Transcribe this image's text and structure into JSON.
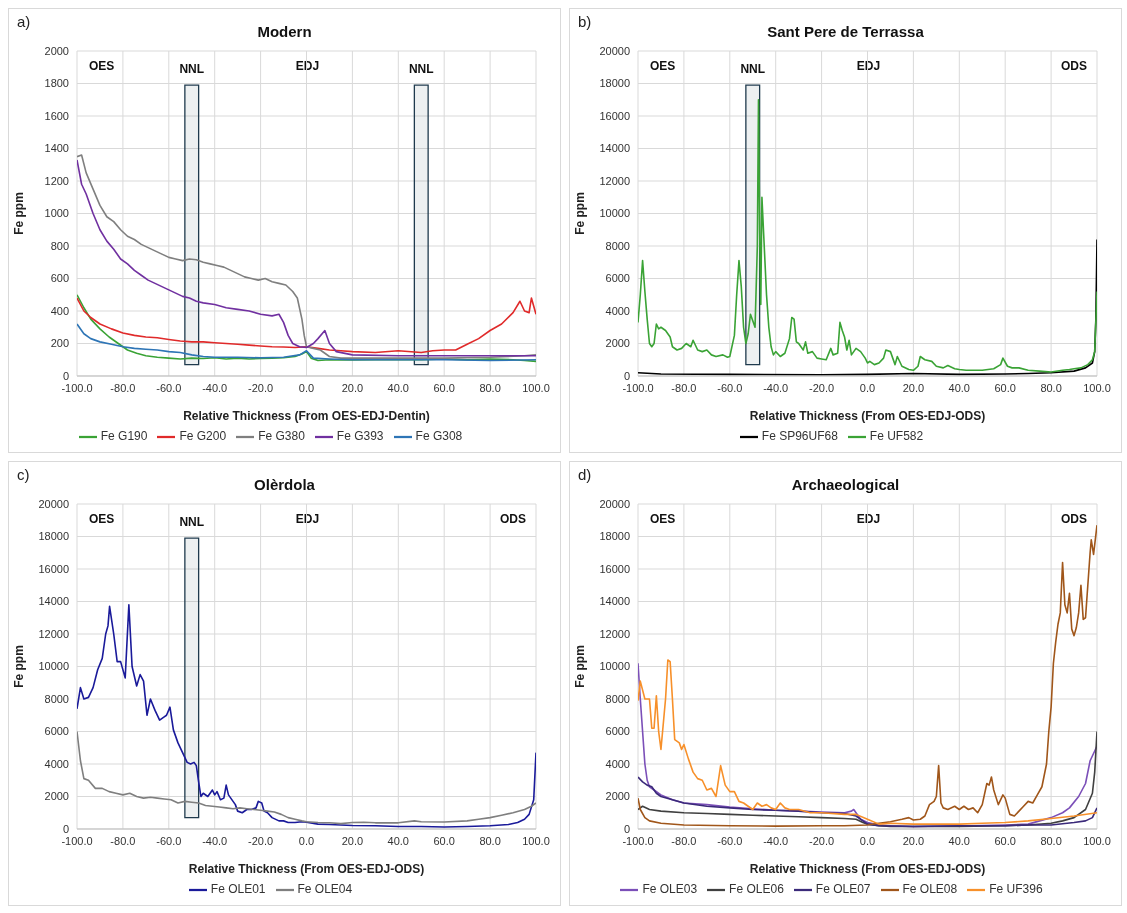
{
  "chart_data": [
    {
      "type": "line",
      "title": "Modern",
      "xlabel": "Relative Thickness (From OES-EDJ-Dentin)",
      "ylabel": "Fe ppm",
      "annotations": [
        "a)",
        "OES",
        "EDJ"
      ],
      "bands": [
        {
          "axis": "x",
          "from": -53,
          "to": -47,
          "label": "NNL",
          "color": "#1f3a4d"
        },
        {
          "axis": "x",
          "from": 47,
          "to": 53,
          "label": "NNL",
          "color": "#1f3a4d"
        }
      ],
      "xlim": [
        -100,
        100
      ],
      "xticks": [
        {
          "value": -100,
          "label": "-100.0"
        },
        {
          "value": -80,
          "label": "-80.0"
        },
        {
          "value": -60,
          "label": "-60.0"
        },
        {
          "value": -40,
          "label": "-40.0"
        },
        {
          "value": -20,
          "label": "-20.0"
        },
        {
          "value": 0,
          "label": "0.0"
        },
        {
          "value": 20,
          "label": "20.0"
        },
        {
          "value": 40,
          "label": "40.0"
        },
        {
          "value": 60,
          "label": "60.0"
        },
        {
          "value": 80,
          "label": "80.0"
        },
        {
          "value": 100,
          "label": "100.0"
        }
      ],
      "ylim": [
        0,
        2000
      ],
      "yticks": [
        0,
        200,
        400,
        600,
        800,
        1000,
        1200,
        1400,
        1600,
        1800,
        2000
      ],
      "grid": true,
      "legend": "bottom",
      "series": [
        {
          "name": "Fe G190",
          "color": "#3aa335",
          "x": [
            -100,
            -97,
            -94,
            -90,
            -86,
            -82,
            -78,
            -74,
            -70,
            -65,
            -60,
            -55,
            -50,
            -45,
            -40,
            -35,
            -30,
            -25,
            -20,
            -15,
            -10,
            -5,
            -2,
            0,
            2,
            5,
            10,
            20,
            30,
            40,
            50,
            60,
            70,
            80,
            90,
            95,
            100
          ],
          "values": [
            500,
            420,
            350,
            290,
            240,
            200,
            160,
            140,
            125,
            115,
            110,
            105,
            110,
            108,
            112,
            105,
            110,
            105,
            108,
            110,
            112,
            120,
            135,
            150,
            110,
            95,
            100,
            98,
            100,
            102,
            100,
            105,
            100,
            105,
            100,
            95,
            90
          ]
        },
        {
          "name": "Fe G200",
          "color": "#e02a2a",
          "x": [
            -100,
            -97,
            -94,
            -90,
            -85,
            -80,
            -75,
            -70,
            -65,
            -60,
            -55,
            -50,
            -45,
            -40,
            -35,
            -30,
            -25,
            -20,
            -15,
            -10,
            -5,
            0,
            5,
            10,
            15,
            20,
            30,
            40,
            50,
            55,
            60,
            65,
            70,
            75,
            80,
            85,
            90,
            93,
            95,
            97,
            98,
            100
          ],
          "values": [
            480,
            400,
            360,
            320,
            290,
            265,
            250,
            240,
            235,
            225,
            215,
            210,
            210,
            205,
            200,
            195,
            190,
            185,
            180,
            178,
            175,
            180,
            170,
            160,
            155,
            150,
            145,
            155,
            145,
            155,
            160,
            160,
            195,
            230,
            280,
            320,
            390,
            460,
            400,
            390,
            480,
            380
          ]
        },
        {
          "name": "Fe G380",
          "color": "#7f7f7f",
          "x": [
            -100,
            -98,
            -96,
            -93,
            -90,
            -87,
            -84,
            -81,
            -78,
            -75,
            -72,
            -69,
            -66,
            -63,
            -60,
            -57,
            -54,
            -51,
            -48,
            -45,
            -42,
            -39,
            -36,
            -33,
            -30,
            -27,
            -24,
            -21,
            -18,
            -15,
            -12,
            -9,
            -6,
            -4,
            -2,
            -1,
            0,
            3,
            6,
            10,
            15,
            20,
            40,
            60,
            80,
            95,
            100
          ],
          "values": [
            1350,
            1360,
            1250,
            1150,
            1050,
            980,
            950,
            900,
            860,
            840,
            810,
            790,
            770,
            750,
            730,
            720,
            710,
            720,
            715,
            700,
            690,
            680,
            670,
            650,
            630,
            610,
            600,
            590,
            600,
            580,
            570,
            560,
            520,
            480,
            350,
            250,
            180,
            170,
            160,
            120,
            110,
            110,
            110,
            110,
            115,
            125,
            130
          ]
        },
        {
          "name": "Fe G393",
          "color": "#7030a0",
          "x": [
            -100,
            -98,
            -96,
            -93,
            -90,
            -87,
            -84,
            -81,
            -78,
            -75,
            -72,
            -69,
            -66,
            -63,
            -60,
            -57,
            -54,
            -51,
            -48,
            -45,
            -40,
            -35,
            -30,
            -25,
            -20,
            -15,
            -12,
            -10,
            -8,
            -6,
            -3,
            0,
            3,
            5,
            8,
            10,
            13,
            20,
            40,
            60,
            80,
            100
          ],
          "values": [
            1330,
            1180,
            1120,
            1000,
            900,
            830,
            780,
            720,
            690,
            650,
            620,
            590,
            570,
            550,
            530,
            510,
            490,
            480,
            460,
            450,
            440,
            420,
            410,
            400,
            380,
            370,
            380,
            330,
            250,
            200,
            180,
            175,
            200,
            230,
            280,
            200,
            150,
            130,
            125,
            125,
            125,
            125
          ]
        },
        {
          "name": "Fe G308",
          "color": "#2e75b6",
          "x": [
            -100,
            -97,
            -94,
            -90,
            -85,
            -80,
            -75,
            -70,
            -65,
            -60,
            -55,
            -50,
            -45,
            -40,
            -30,
            -20,
            -10,
            -3,
            0,
            3,
            10,
            20,
            40,
            60,
            80,
            100
          ],
          "values": [
            320,
            260,
            230,
            210,
            195,
            180,
            170,
            165,
            160,
            150,
            145,
            130,
            120,
            115,
            115,
            112,
            115,
            130,
            155,
            110,
            105,
            100,
            100,
            100,
            95,
            100
          ]
        }
      ]
    },
    {
      "type": "line",
      "title": "Sant Pere de Terrassa",
      "xlabel": "Relative Thickness (From OES-EDJ-ODS)",
      "ylabel": "Fe ppm",
      "annotations": [
        "b)",
        "OES",
        "EDJ",
        "ODS"
      ],
      "bands": [
        {
          "axis": "x",
          "from": -53,
          "to": -47,
          "label": "NNL",
          "color": "#1f3a4d"
        }
      ],
      "xlim": [
        -100,
        100
      ],
      "xticks": [
        {
          "value": -100,
          "label": "-100.0"
        },
        {
          "value": -80,
          "label": "-80.0"
        },
        {
          "value": -60,
          "label": "-60.0"
        },
        {
          "value": -40,
          "label": "-40.0"
        },
        {
          "value": -20,
          "label": "-20.0"
        },
        {
          "value": 0,
          "label": "0.0"
        },
        {
          "value": 20,
          "label": "20.0"
        },
        {
          "value": 40,
          "label": "40.0"
        },
        {
          "value": 60,
          "label": "60.0"
        },
        {
          "value": 80,
          "label": "80.0"
        },
        {
          "value": 100,
          "label": "100.0"
        }
      ],
      "ylim": [
        0,
        20000
      ],
      "yticks": [
        0,
        2000,
        4000,
        6000,
        8000,
        10000,
        12000,
        14000,
        16000,
        18000,
        20000
      ],
      "grid": true,
      "legend": "bottom",
      "series": [
        {
          "name": "Fe SP96UF68",
          "color": "#000000",
          "x": [
            -100,
            -90,
            -60,
            -20,
            0,
            20,
            40,
            60,
            70,
            80,
            90,
            95,
            98,
            99,
            99.5,
            100
          ],
          "values": [
            200,
            120,
            100,
            80,
            100,
            150,
            100,
            120,
            150,
            200,
            300,
            500,
            800,
            1500,
            3500,
            8400
          ]
        },
        {
          "name": "Fe UF582",
          "color": "#3aa335",
          "x": [
            -100,
            -99,
            -98,
            -97,
            -96,
            -95,
            -94,
            -93,
            -92,
            -91,
            -90,
            -88,
            -86,
            -85,
            -83,
            -81,
            -79,
            -77,
            -76,
            -74,
            -72,
            -70,
            -68,
            -66,
            -63,
            -61,
            -60,
            -58,
            -57,
            -56,
            -55,
            -54,
            -53,
            -52,
            -51,
            -50,
            -49,
            -48,
            -47.5,
            -47,
            -46.5,
            -46,
            -45,
            -44,
            -43,
            -42,
            -41,
            -40,
            -38,
            -36,
            -34,
            -33,
            -32,
            -31,
            -30,
            -28,
            -27,
            -26,
            -24,
            -22,
            -20,
            -18,
            -16,
            -15,
            -13,
            -12,
            -11,
            -10,
            -9,
            -8,
            -7,
            -5,
            -3,
            -1,
            0,
            1,
            3,
            5,
            7,
            8,
            10,
            11,
            12,
            13,
            15,
            18,
            20,
            22,
            23,
            25,
            28,
            30,
            33,
            35,
            38,
            40,
            43,
            50,
            55,
            58,
            59,
            61,
            63,
            66,
            70,
            75,
            80,
            85,
            88,
            90,
            93,
            96,
            98,
            99,
            100
          ],
          "values": [
            3300,
            5000,
            7100,
            5200,
            3500,
            2000,
            1800,
            2000,
            3200,
            2900,
            3000,
            2800,
            2400,
            1800,
            1600,
            1700,
            2000,
            1800,
            2200,
            1600,
            1500,
            1600,
            1300,
            1200,
            1300,
            1150,
            1200,
            2500,
            5000,
            7100,
            5500,
            3000,
            2000,
            2600,
            3800,
            3400,
            3000,
            8000,
            17000,
            9000,
            4400,
            11000,
            8000,
            5000,
            3000,
            1800,
            1300,
            1500,
            1200,
            1400,
            2300,
            3600,
            3500,
            2100,
            2000,
            1600,
            2100,
            1400,
            1500,
            1100,
            1050,
            1000,
            1700,
            1300,
            1400,
            3300,
            2800,
            2400,
            1600,
            2200,
            1300,
            1700,
            1500,
            1100,
            800,
            900,
            700,
            800,
            1100,
            1600,
            1500,
            1100,
            700,
            1200,
            600,
            400,
            350,
            600,
            1200,
            1000,
            900,
            600,
            500,
            650,
            450,
            400,
            350,
            350,
            450,
            700,
            1100,
            600,
            500,
            500,
            350,
            300,
            250,
            350,
            400,
            450,
            500,
            700,
            1000,
            1500,
            5200
          ]
        }
      ]
    },
    {
      "type": "line",
      "title": "Olèrdola",
      "xlabel": "Relative Thickness (From OES-EDJ-ODS)",
      "ylabel": "Fe ppm",
      "annotations": [
        "c)",
        "OES",
        "EDJ",
        "ODS"
      ],
      "bands": [
        {
          "axis": "x",
          "from": -53,
          "to": -47,
          "label": "NNL",
          "color": "#1f3a4d"
        }
      ],
      "xlim": [
        -100,
        100
      ],
      "xticks": [
        {
          "value": -100,
          "label": "-100.0"
        },
        {
          "value": -80,
          "label": "-80.0"
        },
        {
          "value": -60,
          "label": "-60.0"
        },
        {
          "value": -40,
          "label": "-40.0"
        },
        {
          "value": -20,
          "label": "-20.0"
        },
        {
          "value": 0,
          "label": "0.0"
        },
        {
          "value": 20,
          "label": "20.0"
        },
        {
          "value": 40,
          "label": "40.0"
        },
        {
          "value": 60,
          "label": "60.0"
        },
        {
          "value": 80,
          "label": "80.0"
        },
        {
          "value": 100,
          "label": "100.0"
        }
      ],
      "ylim": [
        0,
        20000
      ],
      "yticks": [
        0,
        2000,
        4000,
        6000,
        8000,
        10000,
        12000,
        14000,
        16000,
        18000,
        20000
      ],
      "grid": true,
      "legend": "bottom",
      "series": [
        {
          "name": "Fe OLE01",
          "color": "#1a1a9a",
          "x": [
            -100,
            -98.5,
            -97,
            -95,
            -93,
            -91,
            -89,
            -87.5,
            -86.5,
            -85.8,
            -84,
            -82.5,
            -81,
            -79,
            -77.4,
            -76,
            -74,
            -72.5,
            -71,
            -69.5,
            -68,
            -66,
            -64,
            -62,
            -61,
            -59.5,
            -58,
            -56,
            -54,
            -52,
            -50.5,
            -49,
            -48,
            -47,
            -46,
            -45,
            -43,
            -41,
            -40,
            -39,
            -37.5,
            -36,
            -35,
            -34,
            -32,
            -31,
            -30,
            -28,
            -26,
            -24,
            -22,
            -21,
            -19.5,
            -18.5,
            -17,
            -15,
            -12,
            -10,
            -8,
            -5,
            -2,
            0,
            5,
            10,
            20,
            30,
            40,
            50,
            60,
            70,
            80,
            88,
            92,
            95,
            97,
            99,
            100
          ],
          "values": [
            7400,
            8700,
            8000,
            8100,
            8700,
            9800,
            10500,
            12000,
            12500,
            13700,
            12000,
            10300,
            10300,
            9300,
            13800,
            10000,
            8800,
            9500,
            9100,
            7000,
            8000,
            7300,
            6700,
            6900,
            7000,
            7500,
            6100,
            5300,
            4700,
            4100,
            4000,
            4100,
            3900,
            2900,
            2000,
            2200,
            2000,
            2400,
            2100,
            2300,
            1800,
            1900,
            2700,
            2100,
            1700,
            1500,
            1100,
            1000,
            1200,
            1200,
            1300,
            1700,
            1600,
            1100,
            1000,
            700,
            500,
            500,
            400,
            400,
            450,
            420,
            300,
            280,
            220,
            200,
            150,
            150,
            120,
            150,
            200,
            280,
            400,
            600,
            900,
            1800,
            4700
          ]
        },
        {
          "name": "Fe OLE04",
          "color": "#7f7f7f",
          "x": [
            -100,
            -98.5,
            -97,
            -95,
            -92,
            -89,
            -86,
            -83,
            -80,
            -77,
            -74,
            -71,
            -68,
            -65,
            -62,
            -59,
            -56,
            -53,
            -50,
            -47,
            -44,
            -41,
            -38,
            -35,
            -32,
            -29,
            -26,
            -23,
            -20,
            -17,
            -14,
            -11,
            -8,
            -5,
            -2,
            0,
            5,
            10,
            15,
            20,
            25,
            30,
            40,
            47,
            50,
            60,
            70,
            75,
            80,
            85,
            90,
            95,
            98,
            100
          ],
          "values": [
            6000,
            4200,
            3100,
            3000,
            2500,
            2500,
            2300,
            2200,
            2100,
            2200,
            2000,
            1900,
            1950,
            1900,
            1850,
            1800,
            1600,
            1700,
            1650,
            1600,
            1450,
            1400,
            1350,
            1300,
            1250,
            1300,
            1250,
            1200,
            1150,
            1100,
            1050,
            900,
            700,
            600,
            500,
            450,
            400,
            380,
            330,
            400,
            420,
            380,
            380,
            500,
            450,
            430,
            500,
            600,
            700,
            850,
            1000,
            1200,
            1400,
            1600
          ]
        }
      ]
    },
    {
      "type": "line",
      "title": "Archaeological",
      "xlabel": "Relative Thickness (From OES-EDJ-ODS)",
      "ylabel": "Fe ppm",
      "annotations": [
        "d)",
        "OES",
        "EDJ",
        "ODS"
      ],
      "xlim": [
        -100,
        100
      ],
      "xticks": [
        {
          "value": -100,
          "label": "-100.0"
        },
        {
          "value": -80,
          "label": "-80.0"
        },
        {
          "value": -60,
          "label": "-60.0"
        },
        {
          "value": -40,
          "label": "-40.0"
        },
        {
          "value": -20,
          "label": "-20.0"
        },
        {
          "value": 0,
          "label": "0.0"
        },
        {
          "value": 20,
          "label": "20.0"
        },
        {
          "value": 40,
          "label": "40.0"
        },
        {
          "value": 60,
          "label": "60.0"
        },
        {
          "value": 80,
          "label": "80.0"
        },
        {
          "value": 100,
          "label": "100.0"
        }
      ],
      "ylim": [
        0,
        20000
      ],
      "yticks": [
        0,
        2000,
        4000,
        6000,
        8000,
        10000,
        12000,
        14000,
        16000,
        18000,
        20000
      ],
      "grid": true,
      "legend": "bottom",
      "series": [
        {
          "name": "Fe OLE03",
          "color": "#7b4fb8",
          "x": [
            -100,
            -99,
            -98,
            -97,
            -96,
            -95,
            -93,
            -90,
            -85,
            -80,
            -70,
            -60,
            -50,
            -40,
            -30,
            -20,
            -10,
            -7,
            -6,
            -5,
            -3,
            0,
            5,
            10,
            20,
            40,
            60,
            70,
            80,
            85,
            88,
            92,
            95,
            97,
            99,
            100
          ],
          "values": [
            10200,
            8000,
            6000,
            4000,
            3000,
            2600,
            2400,
            2100,
            1800,
            1600,
            1500,
            1350,
            1250,
            1150,
            1100,
            1050,
            1000,
            1100,
            1200,
            1000,
            600,
            400,
            250,
            200,
            150,
            180,
            250,
            300,
            700,
            1000,
            1300,
            2000,
            2800,
            4200,
            4800,
            5100
          ]
        },
        {
          "name": "Fe OLE06",
          "color": "#404040",
          "x": [
            -100,
            -98,
            -95,
            -90,
            -80,
            -70,
            -60,
            -50,
            -40,
            -30,
            -20,
            -10,
            -5,
            -2,
            0,
            5,
            10,
            20,
            40,
            60,
            70,
            80,
            85,
            90,
            95,
            98,
            99,
            100
          ],
          "values": [
            1200,
            1400,
            1200,
            1100,
            1000,
            950,
            900,
            850,
            800,
            750,
            700,
            650,
            600,
            400,
            300,
            200,
            150,
            150,
            150,
            200,
            250,
            350,
            500,
            700,
            1200,
            2200,
            3500,
            6000
          ]
        },
        {
          "name": "Fe OLE07",
          "color": "#3b2a7a",
          "x": [
            -100,
            -98,
            -96,
            -94,
            -92,
            -90,
            -85,
            -80,
            -70,
            -60,
            -50,
            -40,
            -30,
            -20,
            -10,
            -5,
            -2,
            0,
            5,
            20,
            40,
            60,
            70,
            80,
            90,
            95,
            98,
            100
          ],
          "values": [
            3200,
            2900,
            2700,
            2600,
            2200,
            2000,
            1800,
            1600,
            1400,
            1300,
            1200,
            1150,
            1100,
            1000,
            950,
            800,
            500,
            300,
            200,
            150,
            200,
            200,
            250,
            250,
            400,
            500,
            700,
            1300
          ]
        },
        {
          "name": "Fe OLE08",
          "color": "#a0561a",
          "x": [
            -100,
            -99,
            -97,
            -95,
            -90,
            -80,
            -60,
            -40,
            -20,
            -10,
            0,
            5,
            10,
            15,
            18,
            20,
            23,
            25,
            27,
            29,
            30,
            31,
            32,
            33,
            35,
            38,
            40,
            42,
            44,
            46,
            48,
            50,
            52,
            53,
            54,
            55,
            57,
            59,
            60,
            62,
            64,
            66,
            68,
            70,
            72,
            74,
            76,
            78,
            79,
            80,
            81,
            82,
            83,
            84,
            85,
            86,
            87,
            88,
            89,
            90,
            91,
            92,
            93,
            94,
            95,
            96,
            97,
            97.5,
            98.5,
            100
          ],
          "values": [
            1900,
            1200,
            700,
            500,
            350,
            250,
            200,
            180,
            200,
            200,
            250,
            350,
            450,
            600,
            700,
            550,
            600,
            800,
            1500,
            1700,
            2000,
            3900,
            1600,
            1300,
            1200,
            1400,
            1200,
            1400,
            1200,
            1300,
            1000,
            1500,
            2800,
            2700,
            3200,
            2400,
            1500,
            2100,
            1900,
            900,
            800,
            1100,
            1400,
            1700,
            1600,
            2100,
            2600,
            4000,
            6000,
            7500,
            10200,
            11500,
            12600,
            13300,
            16400,
            13800,
            13300,
            14500,
            12300,
            11900,
            12400,
            13300,
            15000,
            12900,
            13000,
            15000,
            17000,
            17800,
            16900,
            18700
          ]
        },
        {
          "name": "Fe UF396",
          "color": "#f7902a",
          "x": [
            -100,
            -99,
            -97,
            -95,
            -94,
            -93,
            -92,
            -91,
            -90,
            -88,
            -87,
            -86,
            -85,
            -84,
            -82,
            -81,
            -80,
            -78,
            -76,
            -74,
            -72,
            -70,
            -68,
            -66,
            -64,
            -62,
            -60,
            -58,
            -56,
            -54,
            -52,
            -50,
            -48,
            -46,
            -44,
            -42,
            -40,
            -38,
            -36,
            -34,
            -30,
            -25,
            -20,
            -10,
            -5,
            0,
            5,
            10,
            20,
            30,
            40,
            50,
            60,
            70,
            80,
            90,
            100
          ],
          "values": [
            7900,
            9100,
            8000,
            8000,
            6200,
            6200,
            8200,
            6000,
            4900,
            8000,
            10400,
            10300,
            8000,
            5500,
            5300,
            4900,
            5200,
            4300,
            3500,
            3100,
            3000,
            2400,
            2500,
            2000,
            3900,
            2700,
            2300,
            2300,
            1700,
            1600,
            1400,
            1200,
            1600,
            1400,
            1500,
            1300,
            1200,
            1600,
            1300,
            1200,
            1200,
            1000,
            1000,
            900,
            900,
            600,
            300,
            350,
            300,
            300,
            300,
            350,
            400,
            500,
            650,
            800,
            1000
          ]
        }
      ]
    }
  ]
}
